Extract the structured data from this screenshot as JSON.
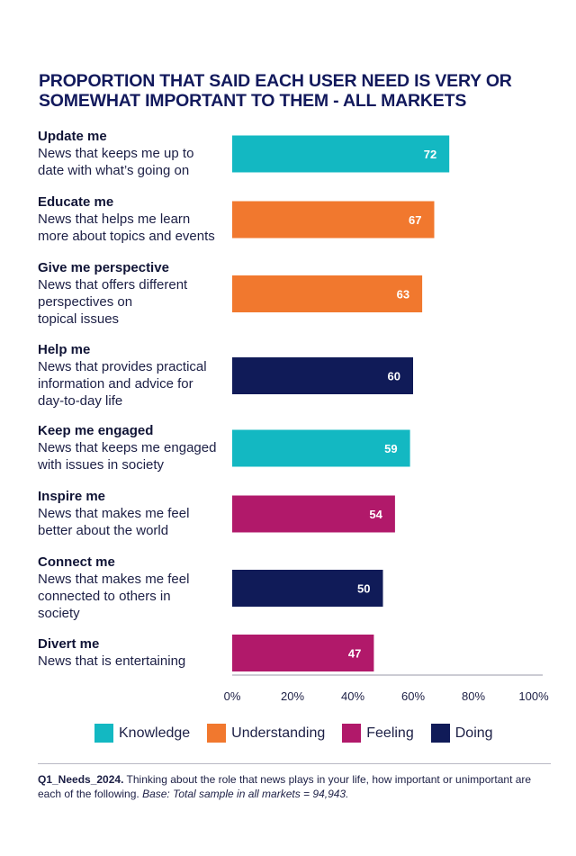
{
  "title_lines": [
    "PROPORTION THAT SAID EACH USER NEED IS VERY OR",
    "SOMEWHAT IMPORTANT TO THEM - ALL MARKETS"
  ],
  "colors": {
    "Knowledge": "#13b8c2",
    "Understanding": "#f1782e",
    "Feeling": "#b1196a",
    "Doing": "#101b58"
  },
  "chart_data": {
    "type": "bar",
    "orientation": "horizontal",
    "xlim": [
      0,
      100
    ],
    "x_ticks": [
      "0%",
      "20%",
      "40%",
      "60%",
      "80%",
      "100%"
    ],
    "items": [
      {
        "name": "Update me",
        "desc": "News that keeps me up to\ndate with what’s going on",
        "value": 72,
        "label": "72",
        "group": "Knowledge"
      },
      {
        "name": "Educate me",
        "desc": "News that helps me learn\nmore about topics and events",
        "value": 67,
        "label": "67",
        "group": "Understanding"
      },
      {
        "name": "Give me perspective",
        "desc": "News that offers different\nperspectives on\ntopical issues",
        "value": 63,
        "label": "63",
        "group": "Understanding"
      },
      {
        "name": "Help me",
        "desc": "News that provides practical\ninformation and advice for\nday-to-day life",
        "value": 60,
        "label": "60",
        "group": "Doing"
      },
      {
        "name": "Keep me engaged",
        "desc": "News that keeps me engaged\nwith issues in society",
        "value": 59,
        "label": "59",
        "group": "Knowledge"
      },
      {
        "name": "Inspire me",
        "desc": "News that makes me feel\nbetter about the world",
        "value": 54,
        "label": "54",
        "group": "Feeling"
      },
      {
        "name": "Connect me",
        "desc": "News that makes me feel\nconnected to others in\nsociety",
        "value": 50,
        "label": "50",
        "group": "Doing"
      },
      {
        "name": "Divert me",
        "desc": "News that is entertaining",
        "value": 47,
        "label": "47",
        "group": "Feeling"
      }
    ],
    "legend": [
      "Knowledge",
      "Understanding",
      "Feeling",
      "Doing"
    ],
    "legend_position": "bottom"
  },
  "footnote": {
    "id": "Q1_Needs_2024.",
    "text": " Thinking about the role that news plays in your life, how important or unimportant are each of the following. ",
    "base": "Base: Total sample in all markets = 94,943."
  }
}
